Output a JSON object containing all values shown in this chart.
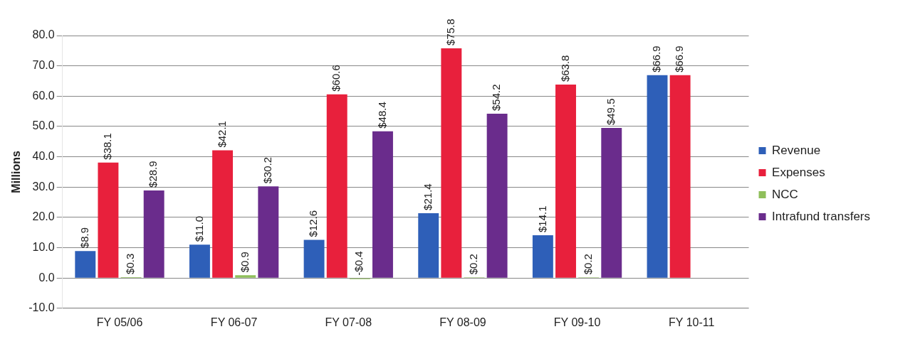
{
  "chart_data": {
    "type": "bar",
    "ylabel": "Millions",
    "categories": [
      "FY 05/06",
      "FY 06-07",
      "FY 07-08",
      "FY 08-09",
      "FY 09-10",
      "FY 10-11"
    ],
    "series": [
      {
        "name": "Revenue",
        "color": "#2e5fb8",
        "values": [
          8.9,
          11.0,
          12.6,
          21.4,
          14.1,
          66.9
        ],
        "value_labels": [
          "$8.9",
          "$11.0",
          "$12.6",
          "$21.4",
          "$14.1",
          "$66.9"
        ]
      },
      {
        "name": "Expenses",
        "color": "#e8203c",
        "values": [
          38.1,
          42.1,
          60.6,
          75.8,
          63.8,
          66.9
        ],
        "value_labels": [
          "$38.1",
          "$42.1",
          "$60.6",
          "$75.8",
          "$63.8",
          "$66.9"
        ]
      },
      {
        "name": "NCC",
        "color": "#8fbf5a",
        "values": [
          0.3,
          0.9,
          -0.4,
          0.2,
          0.2,
          null
        ],
        "value_labels": [
          "$0.3",
          "$0.9",
          "-$0.4",
          "$0.2",
          "$0.2",
          null
        ]
      },
      {
        "name": "Intrafund transfers",
        "color": "#6a2c8c",
        "values": [
          28.9,
          30.2,
          48.4,
          54.2,
          49.5,
          null
        ],
        "value_labels": [
          "$28.9",
          "$30.2",
          "$48.4",
          "$54.2",
          "$49.5",
          null
        ]
      }
    ],
    "ylim": [
      -10,
      80
    ],
    "yticks": [
      {
        "value": -10,
        "label": "-10.0"
      },
      {
        "value": 0,
        "label": "0.0"
      },
      {
        "value": 10,
        "label": "10.0"
      },
      {
        "value": 20,
        "label": "20.0"
      },
      {
        "value": 30,
        "label": "30.0"
      },
      {
        "value": 40,
        "label": "40.0"
      },
      {
        "value": 50,
        "label": "50.0"
      },
      {
        "value": 60,
        "label": "60.0"
      },
      {
        "value": 70,
        "label": "70.0"
      },
      {
        "value": 80,
        "label": "80.0"
      }
    ],
    "grid": "y",
    "legend": "right"
  }
}
